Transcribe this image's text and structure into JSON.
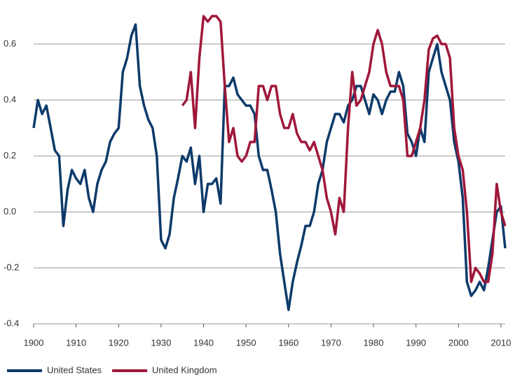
{
  "chart_data": {
    "type": "line",
    "x": [
      1900,
      1901,
      1902,
      1903,
      1904,
      1905,
      1906,
      1907,
      1908,
      1909,
      1910,
      1911,
      1912,
      1913,
      1914,
      1915,
      1916,
      1917,
      1918,
      1919,
      1920,
      1921,
      1922,
      1923,
      1924,
      1925,
      1926,
      1927,
      1928,
      1929,
      1930,
      1931,
      1932,
      1933,
      1934,
      1935,
      1936,
      1937,
      1938,
      1939,
      1940,
      1941,
      1942,
      1943,
      1944,
      1945,
      1946,
      1947,
      1948,
      1949,
      1950,
      1951,
      1952,
      1953,
      1954,
      1955,
      1956,
      1957,
      1958,
      1959,
      1960,
      1961,
      1962,
      1963,
      1964,
      1965,
      1966,
      1967,
      1968,
      1969,
      1970,
      1971,
      1972,
      1973,
      1974,
      1975,
      1976,
      1977,
      1978,
      1979,
      1980,
      1981,
      1982,
      1983,
      1984,
      1985,
      1986,
      1987,
      1988,
      1989,
      1990,
      1991,
      1992,
      1993,
      1994,
      1995,
      1996,
      1997,
      1998,
      1999,
      2000,
      2001,
      2002,
      2003,
      2004,
      2005,
      2006,
      2007,
      2008,
      2009,
      2010,
      2011
    ],
    "series": [
      {
        "name": "United States",
        "color": "#0d3a6a",
        "values": [
          0.3,
          0.4,
          0.35,
          0.38,
          0.3,
          0.22,
          0.2,
          -0.05,
          0.08,
          0.15,
          0.12,
          0.1,
          0.15,
          0.05,
          0.0,
          0.1,
          0.15,
          0.18,
          0.25,
          0.28,
          0.3,
          0.5,
          0.55,
          0.63,
          0.67,
          0.45,
          0.38,
          0.33,
          0.3,
          0.2,
          -0.1,
          -0.13,
          -0.08,
          0.05,
          0.12,
          0.2,
          0.18,
          0.23,
          0.1,
          0.2,
          0.0,
          0.1,
          0.1,
          0.12,
          0.03,
          0.45,
          0.45,
          0.48,
          0.42,
          0.4,
          0.38,
          0.38,
          0.35,
          0.2,
          0.15,
          0.15,
          0.08,
          0.0,
          -0.15,
          -0.25,
          -0.35,
          -0.25,
          -0.18,
          -0.12,
          -0.05,
          -0.05,
          0.0,
          0.1,
          0.15,
          0.25,
          0.3,
          0.35,
          0.35,
          0.32,
          0.38,
          0.4,
          0.45,
          0.45,
          0.4,
          0.35,
          0.42,
          0.4,
          0.35,
          0.4,
          0.43,
          0.43,
          0.5,
          0.45,
          0.28,
          0.25,
          0.2,
          0.3,
          0.25,
          0.5,
          0.55,
          0.6,
          0.5,
          0.45,
          0.4,
          0.25,
          0.18,
          0.05,
          -0.25,
          -0.3,
          -0.28,
          -0.25,
          -0.28,
          -0.2,
          -0.1,
          0.0,
          0.02,
          -0.13
        ]
      },
      {
        "name": "United Kingdom",
        "color": "#a0173a",
        "values": [
          null,
          null,
          null,
          null,
          null,
          null,
          null,
          null,
          null,
          null,
          null,
          null,
          null,
          null,
          null,
          null,
          null,
          null,
          null,
          null,
          null,
          null,
          null,
          null,
          null,
          null,
          null,
          null,
          null,
          null,
          null,
          null,
          null,
          null,
          null,
          0.38,
          0.4,
          0.5,
          0.3,
          0.55,
          0.7,
          0.68,
          0.7,
          0.7,
          0.68,
          0.45,
          0.25,
          0.3,
          0.2,
          0.18,
          0.2,
          0.25,
          0.25,
          0.45,
          0.45,
          0.4,
          0.45,
          0.45,
          0.35,
          0.3,
          0.3,
          0.35,
          0.28,
          0.25,
          0.25,
          0.22,
          0.25,
          0.2,
          0.15,
          0.05,
          0.0,
          -0.08,
          0.05,
          0.0,
          0.3,
          0.5,
          0.38,
          0.4,
          0.45,
          0.5,
          0.6,
          0.65,
          0.6,
          0.5,
          0.45,
          0.45,
          0.45,
          0.4,
          0.2,
          0.2,
          0.25,
          0.3,
          0.4,
          0.58,
          0.62,
          0.63,
          0.6,
          0.6,
          0.55,
          0.3,
          0.2,
          0.15,
          0.0,
          -0.25,
          -0.2,
          -0.22,
          -0.25,
          -0.25,
          -0.15,
          0.1,
          0.0,
          -0.05
        ]
      }
    ],
    "xlim": [
      1900,
      2011
    ],
    "ylim": [
      -0.4,
      0.72
    ],
    "xticks": [
      1900,
      1910,
      1920,
      1930,
      1940,
      1950,
      1960,
      1970,
      1980,
      1990,
      2000,
      2010
    ],
    "yticks": [
      -0.4,
      -0.2,
      {
        "value": 0,
        "label": "0.0"
      },
      0.2,
      0.4,
      0.6
    ],
    "grid": true,
    "legend": "bottom"
  }
}
